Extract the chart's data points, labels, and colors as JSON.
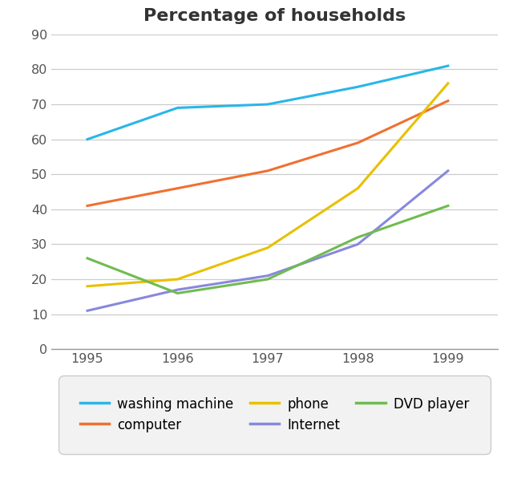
{
  "title": "Percentage of households",
  "years": [
    1995,
    1996,
    1997,
    1998,
    1999
  ],
  "series": {
    "washing machine": {
      "values": [
        60,
        69,
        70,
        75,
        81
      ],
      "color": "#29b6e8"
    },
    "computer": {
      "values": [
        41,
        46,
        51,
        59,
        71
      ],
      "color": "#f07030"
    },
    "phone": {
      "values": [
        18,
        20,
        29,
        46,
        76
      ],
      "color": "#e8c000"
    },
    "Internet": {
      "values": [
        11,
        17,
        21,
        30,
        51
      ],
      "color": "#8888dd"
    },
    "DVD player": {
      "values": [
        26,
        16,
        20,
        32,
        41
      ],
      "color": "#70bb50"
    }
  },
  "ylim": [
    0,
    90
  ],
  "yticks": [
    0,
    10,
    20,
    30,
    40,
    50,
    60,
    70,
    80,
    90
  ],
  "xticks": [
    1995,
    1996,
    1997,
    1998,
    1999
  ],
  "title_fontsize": 16,
  "legend_row1": [
    "washing machine",
    "computer"
  ],
  "legend_row2": [
    "phone",
    "Internet",
    "DVD player"
  ],
  "background_color": "#ffffff",
  "grid_color": "#cccccc",
  "legend_bg": "#f2f2f2",
  "legend_edge": "#cccccc"
}
